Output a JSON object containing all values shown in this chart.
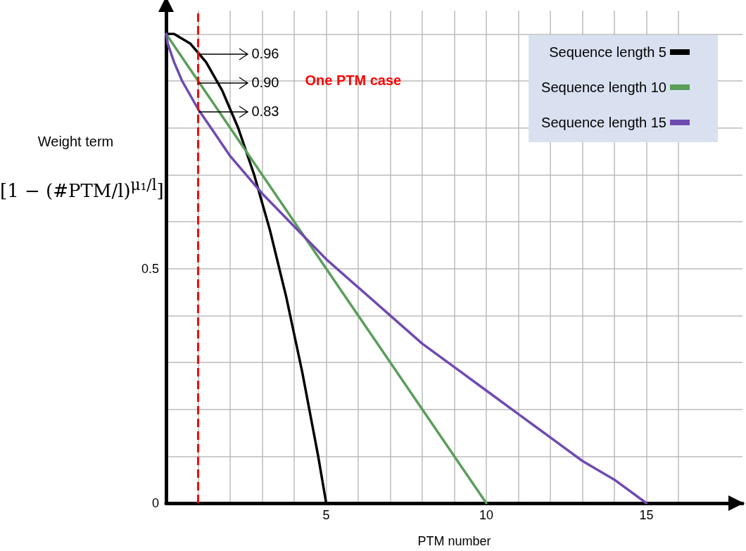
{
  "chart_data": {
    "type": "line",
    "xlabel": "PTM number",
    "ylabel": "Weight term [1 − (#PTM/l)$^{μ₁/l}$]",
    "xlim": [
      0,
      18
    ],
    "ylim": [
      0,
      1.05
    ],
    "xticks": [
      {
        "value": 0,
        "label": null
      },
      {
        "value": 1,
        "label": null
      },
      {
        "value": 2,
        "label": null
      },
      {
        "value": 3,
        "label": null
      },
      {
        "value": 4,
        "label": null
      },
      5,
      {
        "value": 6,
        "label": null
      },
      {
        "value": 7,
        "label": null
      },
      {
        "value": 8,
        "label": null
      },
      {
        "value": 9,
        "label": null
      },
      10,
      {
        "value": 11,
        "label": null
      },
      {
        "value": 12,
        "label": null
      },
      {
        "value": 13,
        "label": null
      },
      {
        "value": 14,
        "label": null
      },
      15,
      {
        "value": 16,
        "label": null
      }
    ],
    "yticks": [
      0,
      {
        "value": 0.1,
        "label": null
      },
      {
        "value": 0.2,
        "label": null
      },
      {
        "value": 0.3,
        "label": null
      },
      {
        "value": 0.4,
        "label": null
      },
      0.5,
      {
        "value": 0.6,
        "label": null
      },
      {
        "value": 0.7,
        "label": null
      },
      {
        "value": 0.8,
        "label": null
      },
      {
        "value": 0.9,
        "label": null
      },
      {
        "value": 1,
        "label": null
      }
    ],
    "grid": true,
    "legend": "top right",
    "marker": "none",
    "line_style": "solid",
    "series": [
      {
        "name": "Sequence length 5",
        "color": "#000000",
        "x": [
          0,
          0.25,
          0.5,
          0.75,
          1,
          1.25,
          1.5,
          1.75,
          2,
          2.25,
          2.5,
          2.75,
          3,
          3.25,
          3.5,
          3.75,
          4,
          4.25,
          4.5,
          4.75,
          5
        ],
        "values": [
          1,
          1,
          0.99,
          0.98,
          0.96,
          0.94,
          0.91,
          0.88,
          0.84,
          0.8,
          0.75,
          0.7,
          0.64,
          0.58,
          0.51,
          0.44,
          0.36,
          0.28,
          0.19,
          0.1,
          0
        ]
      },
      {
        "name": "Sequence length 10",
        "color": "#5b9e5a",
        "x": [
          0,
          1,
          5,
          10
        ],
        "values": [
          1,
          0.9,
          0.5,
          0
        ]
      },
      {
        "name": "Sequence length 15",
        "color": "#6f4ab0",
        "x": [
          0,
          0.05,
          0.1,
          0.25,
          0.5,
          1,
          1.5,
          2,
          3,
          4,
          5,
          6,
          7,
          8,
          9,
          10,
          11,
          12,
          13,
          14,
          15
        ],
        "values": [
          1,
          0.98,
          0.97,
          0.94,
          0.9,
          0.84,
          0.79,
          0.74,
          0.66,
          0.59,
          0.52,
          0.46,
          0.4,
          0.34,
          0.29,
          0.24,
          0.19,
          0.14,
          0.09,
          0.05,
          0
        ]
      }
    ],
    "ref_lines": [
      {
        "axis": "x",
        "value": 1,
        "label": "One PTM case",
        "color": "#ff0000",
        "line_style": "dashed"
      }
    ],
    "annotations": [
      "0.96",
      "0.90",
      "0.83"
    ]
  }
}
